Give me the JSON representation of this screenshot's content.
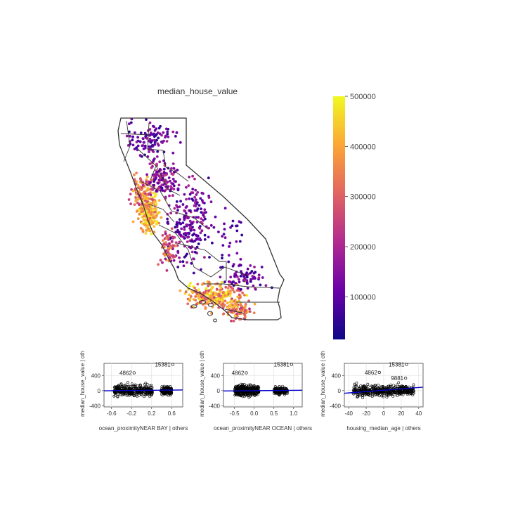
{
  "map": {
    "title": "median_house_value",
    "colorbar": {
      "ticks": [
        "500000",
        "400000",
        "300000",
        "200000",
        "100000"
      ],
      "tick_values": [
        500000,
        400000,
        300000,
        200000,
        100000
      ],
      "range": [
        15000,
        500001
      ],
      "colormap": "plasma",
      "colors": [
        "#0d0887",
        "#6a00a8",
        "#b12a90",
        "#e16462",
        "#fca636",
        "#f0f921"
      ]
    }
  },
  "chart_data": [
    {
      "type": "scatter",
      "panel": "added-variable plot 1",
      "xlabel": "ocean_proximityNEAR BAY | others",
      "ylabel": "median_house_value  | oth",
      "x_ticks": [
        "-0.6",
        "-0.2",
        "0.2",
        "0.6"
      ],
      "x_tick_values": [
        -0.6,
        -0.2,
        0.2,
        0.6
      ],
      "y_ticks": [
        "-400",
        "0",
        "400"
      ],
      "y_tick_values": [
        -400,
        0,
        400
      ],
      "xlim": [
        -0.75,
        0.82
      ],
      "ylim": [
        -430,
        720
      ],
      "grid": true,
      "outliers": [
        {
          "label": "4862",
          "x": -0.15,
          "y": 470
        },
        {
          "label": "15381",
          "x": 0.62,
          "y": 690
        }
      ],
      "fit_line": {
        "color": "#0000cc",
        "x": [
          -0.75,
          0.82
        ],
        "y": [
          -5,
          18
        ]
      },
      "clusters": [
        {
          "x_range": [
            -0.55,
            0.22
          ],
          "y_spread": 260,
          "n": 360
        },
        {
          "x_range": [
            0.38,
            0.6
          ],
          "y_spread": 190,
          "n": 130
        }
      ]
    },
    {
      "type": "scatter",
      "panel": "added-variable plot 2",
      "xlabel": "ocean_proximityNEAR OCEAN | others",
      "ylabel": "median_house_value  | oth",
      "x_ticks": [
        "-0.5",
        "0.0",
        "0.5",
        "1.0"
      ],
      "x_tick_values": [
        -0.5,
        0.0,
        0.5,
        1.0
      ],
      "y_ticks": [
        "-400",
        "0",
        "400"
      ],
      "y_tick_values": [
        -400,
        0,
        400
      ],
      "xlim": [
        -0.78,
        1.22
      ],
      "ylim": [
        -430,
        720
      ],
      "grid": true,
      "outliers": [
        {
          "label": "4862",
          "x": -0.2,
          "y": 470
        },
        {
          "label": "15381",
          "x": 0.95,
          "y": 690
        }
      ],
      "fit_line": {
        "color": "#0000cc",
        "x": [
          -0.78,
          1.22
        ],
        "y": [
          -10,
          10
        ]
      },
      "clusters": [
        {
          "x_range": [
            -0.5,
            0.12
          ],
          "y_spread": 250,
          "n": 330
        },
        {
          "x_range": [
            0.5,
            0.85
          ],
          "y_spread": 200,
          "n": 150
        }
      ]
    },
    {
      "type": "scatter",
      "panel": "added-variable plot 3",
      "xlabel": "housing_median_age | others",
      "ylabel": "median_house_value  | oth",
      "x_ticks": [
        "-40",
        "-20",
        "0",
        "20",
        "40"
      ],
      "x_tick_values": [
        -40,
        -20,
        0,
        20,
        40
      ],
      "y_ticks": [
        "-400",
        "0",
        "400"
      ],
      "y_tick_values": [
        -400,
        0,
        400
      ],
      "xlim": [
        -45,
        45
      ],
      "ylim": [
        -430,
        720
      ],
      "grid": true,
      "outliers": [
        {
          "label": "4862",
          "x": -5,
          "y": 480
        },
        {
          "label": "15381",
          "x": 26,
          "y": 690
        },
        {
          "label": "9881",
          "x": 25,
          "y": 330
        }
      ],
      "fit_line": {
        "color": "#0000cc",
        "x": [
          -45,
          45
        ],
        "y": [
          -70,
          90
        ]
      },
      "clusters": [
        {
          "x_range": [
            -35,
            35
          ],
          "y_spread": 250,
          "n": 460
        }
      ]
    }
  ]
}
